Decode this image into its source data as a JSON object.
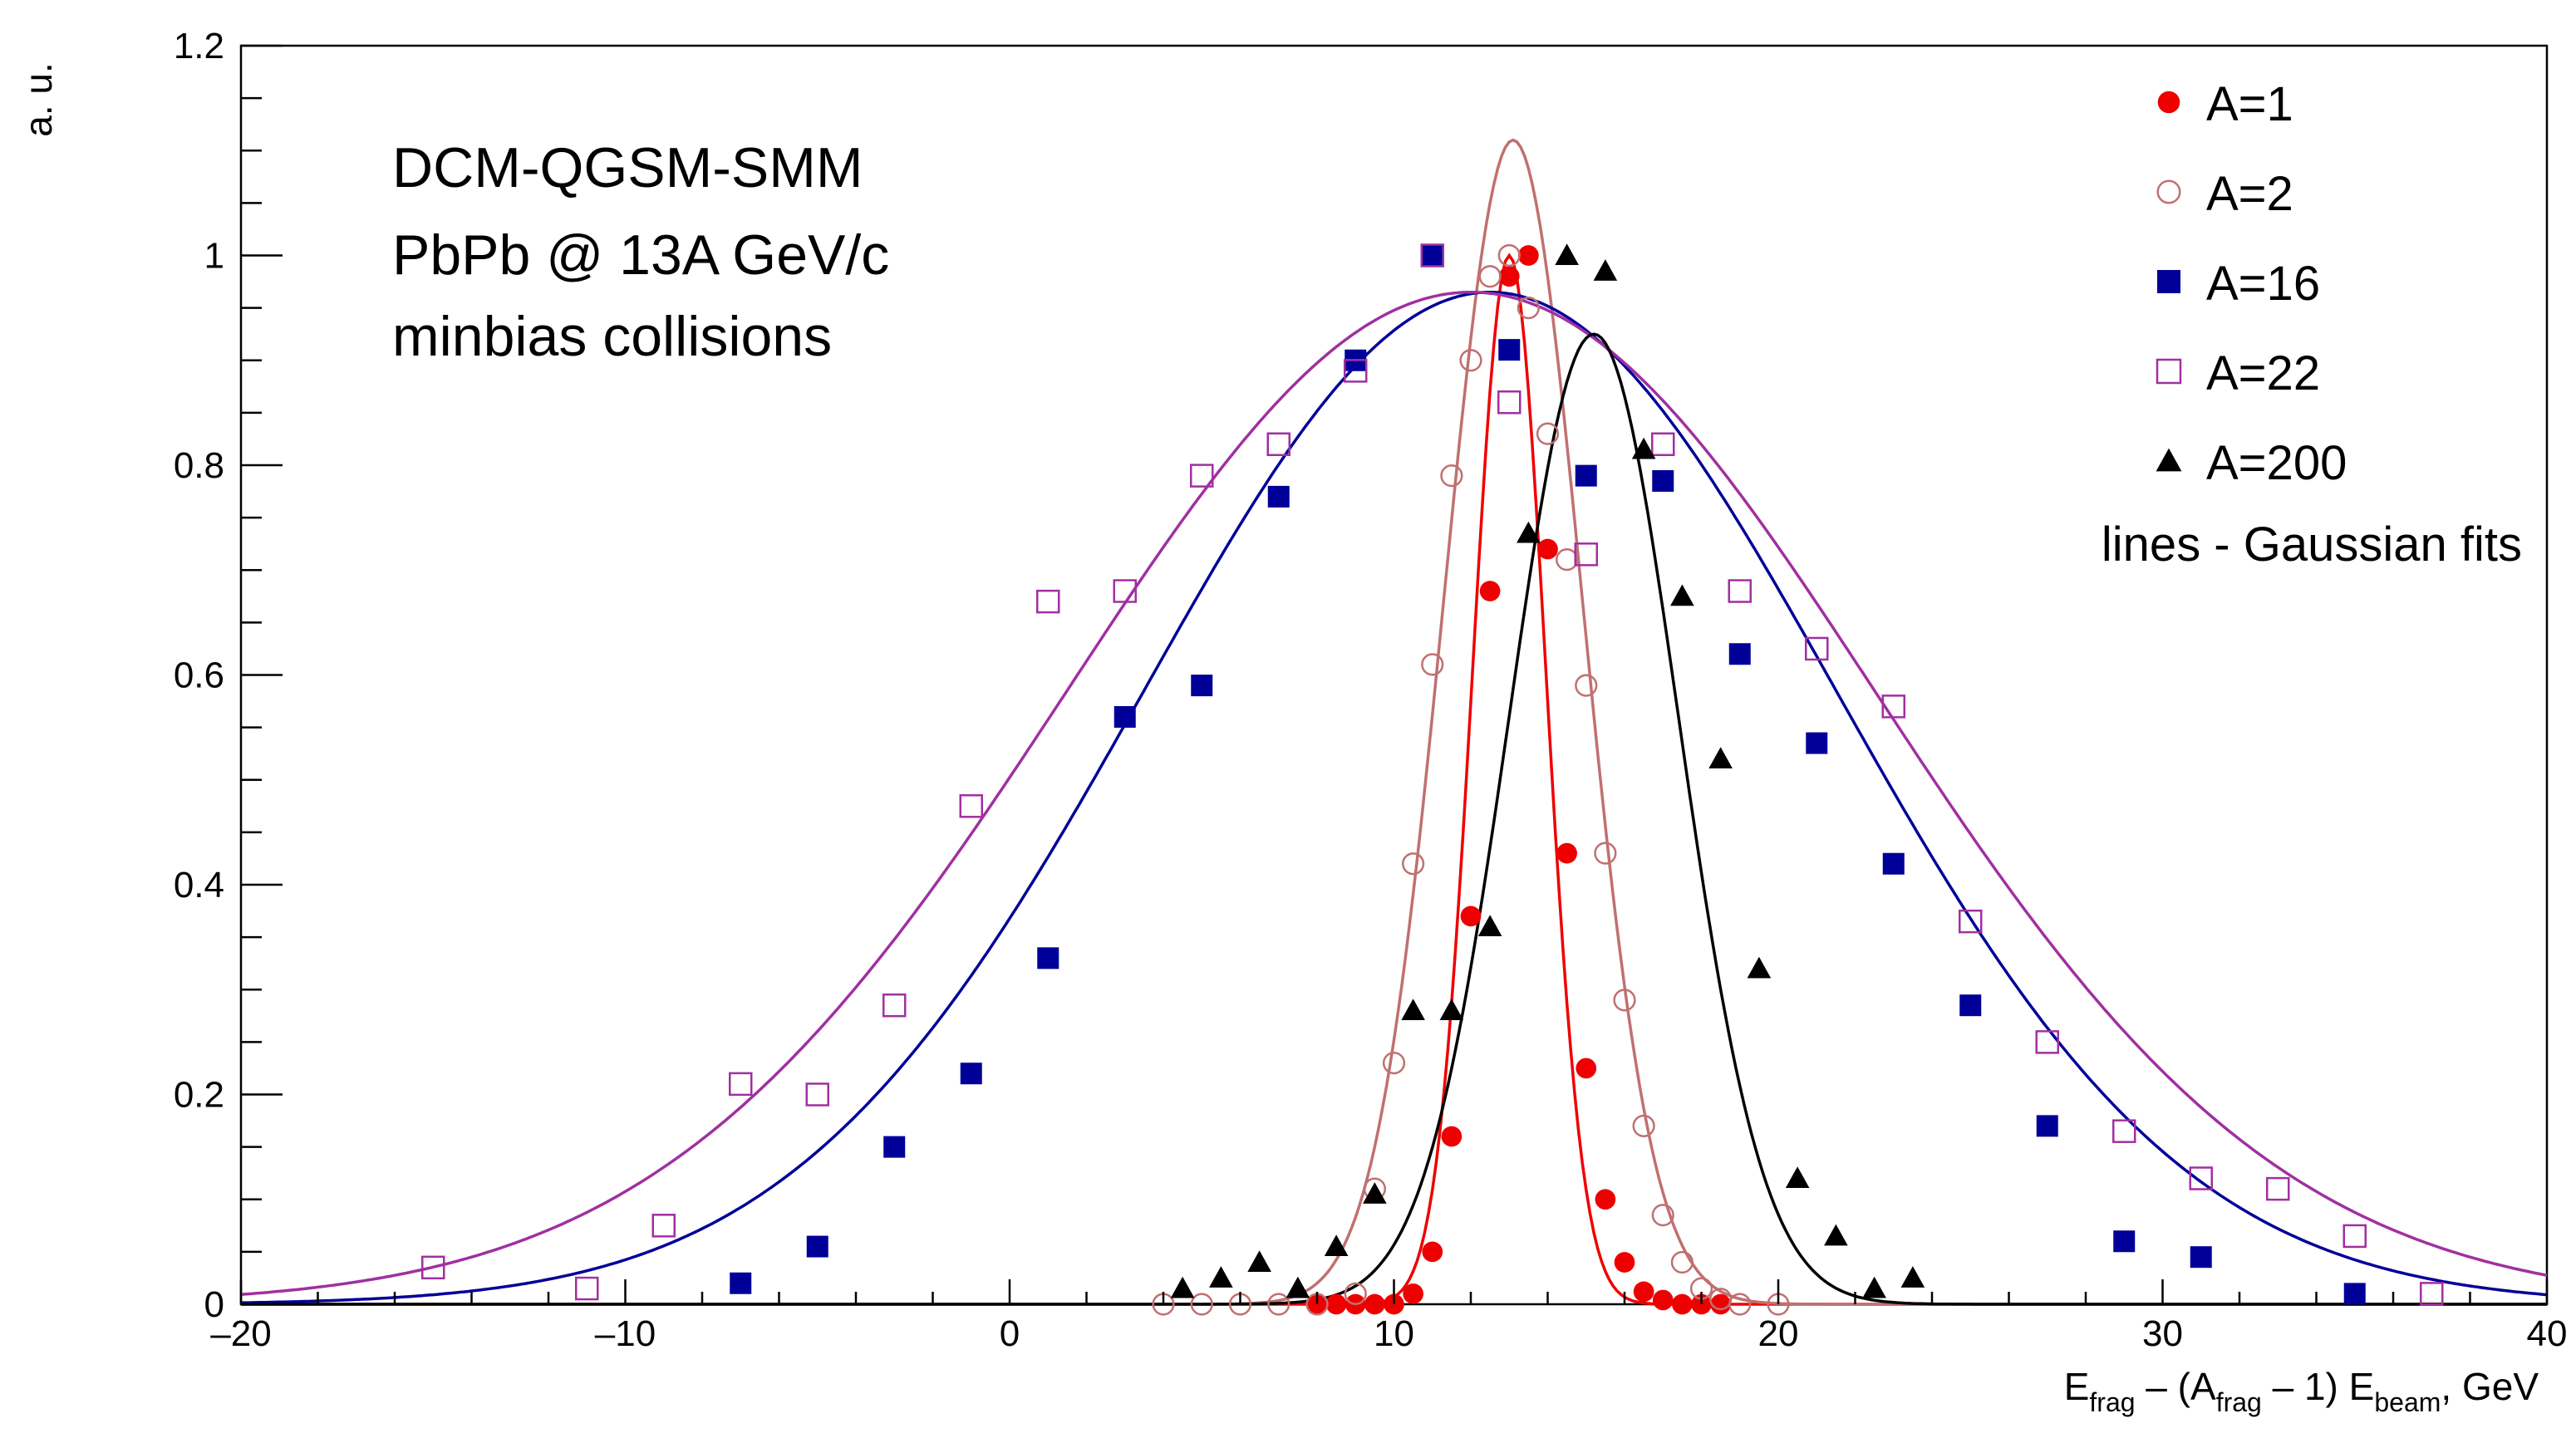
{
  "chart_data": {
    "type": "scatter",
    "title": "",
    "annotation_lines": [
      "DCM-QGSM-SMM",
      "PbPb @ 13A GeV/c",
      "minbias collisions"
    ],
    "ylabel": "a. u.",
    "xlabel_parts": {
      "e1": "E",
      "s1": "frag",
      "mid": " – (A",
      "s2": "frag",
      "mid2": " – 1) E",
      "s3": "beam",
      "tail": ", GeV"
    },
    "xlim": [
      -20,
      40
    ],
    "ylim": [
      0,
      1.2
    ],
    "x_ticks": [
      -20,
      -10,
      0,
      10,
      20,
      30,
      40
    ],
    "x_tick_labels": [
      "–20",
      "–10",
      "0",
      "10",
      "20",
      "30",
      "40"
    ],
    "y_ticks": [
      0,
      0.2,
      0.4,
      0.6,
      0.8,
      1,
      1.2
    ],
    "y_tick_labels": [
      "0",
      "0.2",
      "0.4",
      "0.6",
      "0.8",
      "1",
      "1.2"
    ],
    "grid": false,
    "legend_position": "top-right",
    "legend_note": "lines - Gaussian fits",
    "series": [
      {
        "name": "A=1",
        "marker": "filled-circle",
        "color": "#ee0000",
        "fit": {
          "mean": 13.0,
          "sigma": 0.95,
          "amp": 1.0
        },
        "x": [
          8.0,
          8.5,
          9.0,
          9.5,
          10.0,
          10.5,
          11.0,
          11.5,
          12.0,
          12.5,
          13.0,
          13.5,
          14.0,
          14.5,
          15.0,
          15.5,
          16.0,
          16.5,
          17.0,
          17.5,
          18.0,
          18.5
        ],
        "y": [
          0.0,
          0.0,
          0.0,
          0.0,
          0.0,
          0.01,
          0.05,
          0.16,
          0.37,
          0.68,
          0.98,
          1.0,
          0.72,
          0.43,
          0.225,
          0.1,
          0.04,
          0.012,
          0.004,
          0.0,
          0.0,
          0.0
        ]
      },
      {
        "name": "A=2",
        "marker": "open-circle",
        "color": "#c07070",
        "fit": {
          "mean": 13.1,
          "sigma": 1.8,
          "amp": 1.11
        },
        "x": [
          4.0,
          5.0,
          6.0,
          7.0,
          8.0,
          9.0,
          9.5,
          10.0,
          10.5,
          11.0,
          11.5,
          12.0,
          12.5,
          13.0,
          13.5,
          14.0,
          14.5,
          15.0,
          15.5,
          16.0,
          16.5,
          17.0,
          17.5,
          18.0,
          18.5,
          19.0,
          20.0
        ],
        "y": [
          0.0,
          0.0,
          0.0,
          0.0,
          0.0,
          0.01,
          0.11,
          0.23,
          0.42,
          0.61,
          0.79,
          0.9,
          0.98,
          1.0,
          0.95,
          0.83,
          0.71,
          0.59,
          0.43,
          0.29,
          0.17,
          0.085,
          0.04,
          0.015,
          0.005,
          0.0,
          0.0
        ]
      },
      {
        "name": "A=16",
        "marker": "filled-square",
        "color": "#000099",
        "fit": {
          "mean": 12.5,
          "sigma": 9.0,
          "amp": 0.965
        },
        "x": [
          -7,
          -5,
          -3,
          -1,
          1,
          3,
          5,
          7,
          9,
          11,
          13,
          15,
          17,
          19,
          21,
          23,
          25,
          27,
          29,
          31,
          35
        ],
        "y": [
          0.02,
          0.055,
          0.15,
          0.22,
          0.33,
          0.56,
          0.59,
          0.77,
          0.9,
          1.0,
          0.91,
          0.79,
          0.785,
          0.62,
          0.535,
          0.42,
          0.285,
          0.17,
          0.06,
          0.045,
          0.01
        ]
      },
      {
        "name": "A=22",
        "marker": "open-square",
        "color": "#a030a0",
        "fit": {
          "mean": 12.0,
          "sigma": 10.5,
          "amp": 0.965
        },
        "x": [
          -15,
          -11,
          -9,
          -7,
          -5,
          -3,
          -1,
          1,
          3,
          5,
          7,
          9,
          11,
          13,
          15,
          17,
          19,
          21,
          23,
          25,
          27,
          29,
          31,
          33,
          35,
          37
        ],
        "y": [
          0.035,
          0.015,
          0.075,
          0.21,
          0.2,
          0.285,
          0.475,
          0.67,
          0.68,
          0.79,
          0.82,
          0.89,
          1.0,
          0.86,
          0.715,
          0.82,
          0.68,
          0.625,
          0.57,
          0.365,
          0.25,
          0.165,
          0.12,
          0.11,
          0.065,
          0.01
        ]
      },
      {
        "name": "A=200",
        "marker": "filled-triangle",
        "color": "#000000",
        "fit": {
          "mean": 15.2,
          "sigma": 2.2,
          "amp": 0.925
        },
        "x": [
          4.5,
          5.5,
          6.5,
          7.5,
          8.5,
          9.5,
          10.5,
          11.5,
          12.5,
          13.5,
          14.5,
          15.5,
          16.5,
          17.5,
          18.5,
          19.5,
          20.5,
          21.5,
          22.5,
          23.5
        ],
        "y": [
          0.015,
          0.025,
          0.04,
          0.015,
          0.055,
          0.105,
          0.28,
          0.28,
          0.36,
          0.735,
          1.0,
          0.985,
          0.815,
          0.675,
          0.52,
          0.32,
          0.12,
          0.065,
          0.015,
          0.025
        ]
      }
    ]
  }
}
